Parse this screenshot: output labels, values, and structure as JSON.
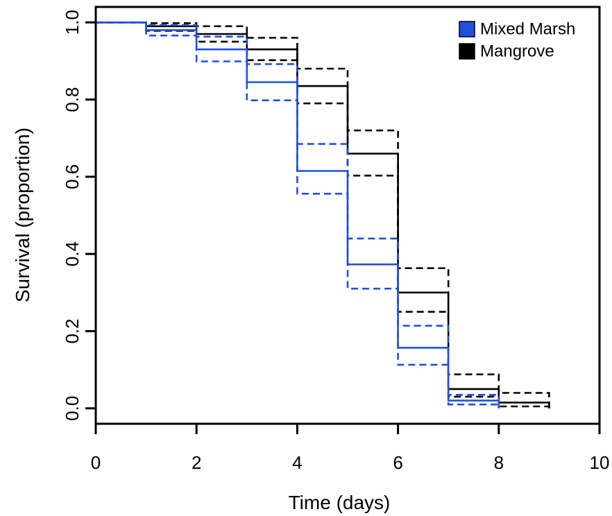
{
  "chart_data": {
    "type": "line",
    "subtype": "survival-step",
    "xlabel": "Time (days)",
    "ylabel": "Survival (proportion)",
    "xlim": [
      0,
      10
    ],
    "ylim": [
      -0.04,
      1.04
    ],
    "x_ticks": [
      "0",
      "2",
      "4",
      "6",
      "8",
      "10"
    ],
    "y_ticks": [
      "0.0",
      "0.2",
      "0.4",
      "0.6",
      "0.8",
      "1.0"
    ],
    "legend_position": "top-right",
    "grid": false,
    "series": [
      {
        "name": "Mixed Marsh",
        "color": "#1f4fe0",
        "x": [
          0,
          1,
          2,
          3,
          4,
          5,
          6,
          7,
          8
        ],
        "estimate": [
          1.0,
          0.98,
          0.93,
          0.845,
          0.615,
          0.373,
          0.157,
          0.02,
          0.0
        ],
        "upper": [
          1.0,
          0.993,
          0.963,
          0.892,
          0.685,
          0.44,
          0.214,
          0.035,
          0.0
        ],
        "lower": [
          1.0,
          0.966,
          0.899,
          0.798,
          0.556,
          0.31,
          0.113,
          0.01,
          0.0
        ]
      },
      {
        "name": "Mangrove",
        "color": "#000000",
        "x": [
          0,
          1,
          2,
          3,
          4,
          5,
          6,
          7,
          8,
          9
        ],
        "estimate": [
          1.0,
          0.99,
          0.97,
          0.93,
          0.835,
          0.66,
          0.3,
          0.05,
          0.015,
          0.0
        ],
        "upper": [
          1.0,
          0.998,
          0.99,
          0.96,
          0.88,
          0.72,
          0.363,
          0.088,
          0.04,
          0.0
        ],
        "lower": [
          1.0,
          0.978,
          0.95,
          0.902,
          0.79,
          0.603,
          0.25,
          0.03,
          0.005,
          0.0
        ]
      }
    ]
  }
}
